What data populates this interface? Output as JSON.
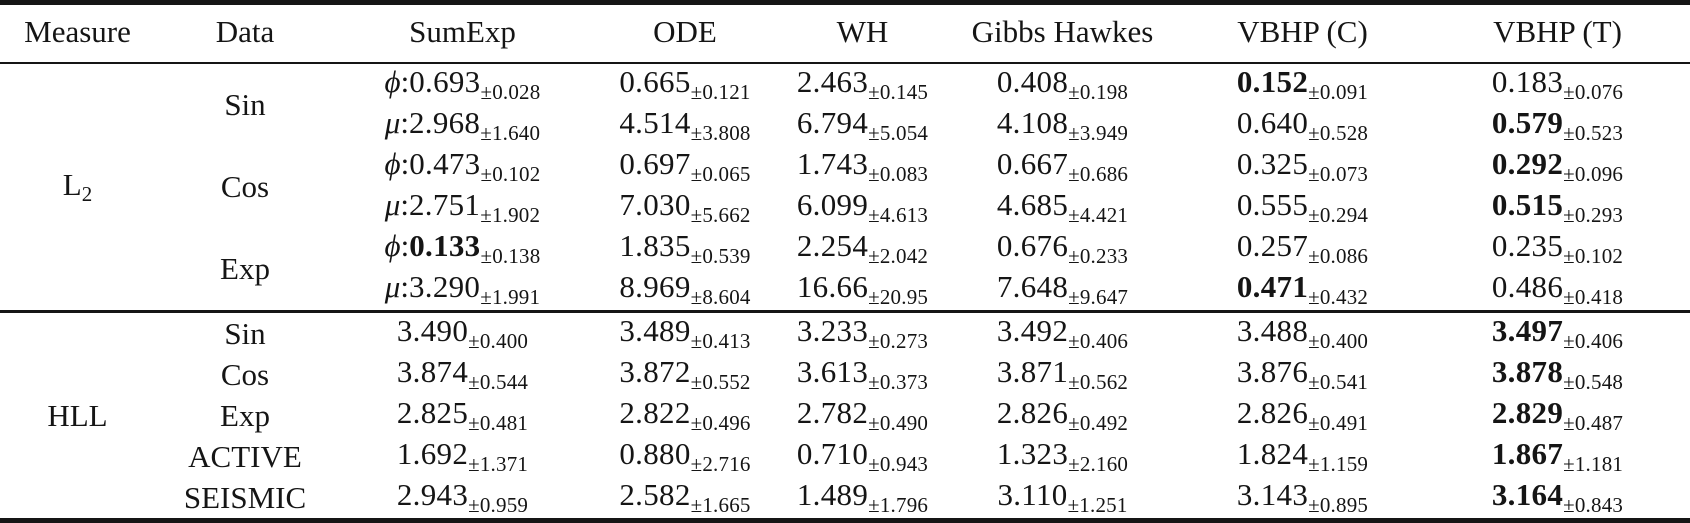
{
  "table": {
    "columns": [
      {
        "key": "measure",
        "label": "Measure"
      },
      {
        "key": "data",
        "label": "Data"
      },
      {
        "key": "sumexp",
        "label": "SumExp"
      },
      {
        "key": "ode",
        "label": "ODE"
      },
      {
        "key": "wh",
        "label": "WH"
      },
      {
        "key": "gibbs_hawkes",
        "label": "Gibbs Hawkes"
      },
      {
        "key": "vbhp_c",
        "label": "VBHP (C)"
      },
      {
        "key": "vbhp_t",
        "label": "VBHP (T)"
      }
    ],
    "sections": [
      {
        "measure": {
          "base": "L",
          "sub": "2"
        },
        "groups": [
          {
            "data": "Sin",
            "rows": [
              {
                "cells": [
                  {
                    "prefix": "ϕ",
                    "value": "0.693",
                    "err": "±0.028",
                    "bold": false
                  },
                  {
                    "value": "0.665",
                    "err": "±0.121",
                    "bold": false
                  },
                  {
                    "value": "2.463",
                    "err": "±0.145",
                    "bold": false
                  },
                  {
                    "value": "0.408",
                    "err": "±0.198",
                    "bold": false
                  },
                  {
                    "value": "0.152",
                    "err": "±0.091",
                    "bold": true
                  },
                  {
                    "value": "0.183",
                    "err": "±0.076",
                    "bold": false
                  }
                ]
              },
              {
                "cells": [
                  {
                    "prefix": "μ",
                    "value": "2.968",
                    "err": "±1.640",
                    "bold": false
                  },
                  {
                    "value": "4.514",
                    "err": "±3.808",
                    "bold": false
                  },
                  {
                    "value": "6.794",
                    "err": "±5.054",
                    "bold": false
                  },
                  {
                    "value": "4.108",
                    "err": "±3.949",
                    "bold": false
                  },
                  {
                    "value": "0.640",
                    "err": "±0.528",
                    "bold": false
                  },
                  {
                    "value": "0.579",
                    "err": "±0.523",
                    "bold": true
                  }
                ]
              }
            ]
          },
          {
            "data": "Cos",
            "rows": [
              {
                "cells": [
                  {
                    "prefix": "ϕ",
                    "value": "0.473",
                    "err": "±0.102",
                    "bold": false
                  },
                  {
                    "value": "0.697",
                    "err": "±0.065",
                    "bold": false
                  },
                  {
                    "value": "1.743",
                    "err": "±0.083",
                    "bold": false
                  },
                  {
                    "value": "0.667",
                    "err": "±0.686",
                    "bold": false
                  },
                  {
                    "value": "0.325",
                    "err": "±0.073",
                    "bold": false
                  },
                  {
                    "value": "0.292",
                    "err": "±0.096",
                    "bold": true
                  }
                ]
              },
              {
                "cells": [
                  {
                    "prefix": "μ",
                    "value": "2.751",
                    "err": "±1.902",
                    "bold": false
                  },
                  {
                    "value": "7.030",
                    "err": "±5.662",
                    "bold": false
                  },
                  {
                    "value": "6.099",
                    "err": "±4.613",
                    "bold": false
                  },
                  {
                    "value": "4.685",
                    "err": "±4.421",
                    "bold": false
                  },
                  {
                    "value": "0.555",
                    "err": "±0.294",
                    "bold": false
                  },
                  {
                    "value": "0.515",
                    "err": "±0.293",
                    "bold": true
                  }
                ]
              }
            ]
          },
          {
            "data": "Exp",
            "rows": [
              {
                "cells": [
                  {
                    "prefix": "ϕ",
                    "value": "0.133",
                    "err": "±0.138",
                    "bold": true
                  },
                  {
                    "value": "1.835",
                    "err": "±0.539",
                    "bold": false
                  },
                  {
                    "value": "2.254",
                    "err": "±2.042",
                    "bold": false
                  },
                  {
                    "value": "0.676",
                    "err": "±0.233",
                    "bold": false
                  },
                  {
                    "value": "0.257",
                    "err": "±0.086",
                    "bold": false
                  },
                  {
                    "value": "0.235",
                    "err": "±0.102",
                    "bold": false
                  }
                ]
              },
              {
                "cells": [
                  {
                    "prefix": "μ",
                    "value": "3.290",
                    "err": "±1.991",
                    "bold": false
                  },
                  {
                    "value": "8.969",
                    "err": "±8.604",
                    "bold": false
                  },
                  {
                    "value": "16.66",
                    "err": "±20.95",
                    "bold": false
                  },
                  {
                    "value": "7.648",
                    "err": "±9.647",
                    "bold": false
                  },
                  {
                    "value": "0.471",
                    "err": "±0.432",
                    "bold": true
                  },
                  {
                    "value": "0.486",
                    "err": "±0.418",
                    "bold": false
                  }
                ]
              }
            ]
          }
        ]
      },
      {
        "measure": {
          "base": "HLL",
          "sub": ""
        },
        "groups": [
          {
            "data": "Sin",
            "rows": [
              {
                "cells": [
                  {
                    "value": "3.490",
                    "err": "±0.400",
                    "bold": false
                  },
                  {
                    "value": "3.489",
                    "err": "±0.413",
                    "bold": false
                  },
                  {
                    "value": "3.233",
                    "err": "±0.273",
                    "bold": false
                  },
                  {
                    "value": "3.492",
                    "err": "±0.406",
                    "bold": false
                  },
                  {
                    "value": "3.488",
                    "err": "±0.400",
                    "bold": false
                  },
                  {
                    "value": "3.497",
                    "err": "±0.406",
                    "bold": true
                  }
                ]
              }
            ]
          },
          {
            "data": "Cos",
            "rows": [
              {
                "cells": [
                  {
                    "value": "3.874",
                    "err": "±0.544",
                    "bold": false
                  },
                  {
                    "value": "3.872",
                    "err": "±0.552",
                    "bold": false
                  },
                  {
                    "value": "3.613",
                    "err": "±0.373",
                    "bold": false
                  },
                  {
                    "value": "3.871",
                    "err": "±0.562",
                    "bold": false
                  },
                  {
                    "value": "3.876",
                    "err": "±0.541",
                    "bold": false
                  },
                  {
                    "value": "3.878",
                    "err": "±0.548",
                    "bold": true
                  }
                ]
              }
            ]
          },
          {
            "data": "Exp",
            "rows": [
              {
                "cells": [
                  {
                    "value": "2.825",
                    "err": "±0.481",
                    "bold": false
                  },
                  {
                    "value": "2.822",
                    "err": "±0.496",
                    "bold": false
                  },
                  {
                    "value": "2.782",
                    "err": "±0.490",
                    "bold": false
                  },
                  {
                    "value": "2.826",
                    "err": "±0.492",
                    "bold": false
                  },
                  {
                    "value": "2.826",
                    "err": "±0.491",
                    "bold": false
                  },
                  {
                    "value": "2.829",
                    "err": "±0.487",
                    "bold": true
                  }
                ]
              }
            ]
          },
          {
            "data": "ACTIVE",
            "rows": [
              {
                "cells": [
                  {
                    "value": "1.692",
                    "err": "±1.371",
                    "bold": false
                  },
                  {
                    "value": "0.880",
                    "err": "±2.716",
                    "bold": false
                  },
                  {
                    "value": "0.710",
                    "err": "±0.943",
                    "bold": false
                  },
                  {
                    "value": "1.323",
                    "err": "±2.160",
                    "bold": false
                  },
                  {
                    "value": "1.824",
                    "err": "±1.159",
                    "bold": false
                  },
                  {
                    "value": "1.867",
                    "err": "±1.181",
                    "bold": true
                  }
                ]
              }
            ]
          },
          {
            "data": "SEISMIC",
            "rows": [
              {
                "cells": [
                  {
                    "value": "2.943",
                    "err": "±0.959",
                    "bold": false
                  },
                  {
                    "value": "2.582",
                    "err": "±1.665",
                    "bold": false
                  },
                  {
                    "value": "1.489",
                    "err": "±1.796",
                    "bold": false
                  },
                  {
                    "value": "3.110",
                    "err": "±1.251",
                    "bold": false
                  },
                  {
                    "value": "3.143",
                    "err": "±0.895",
                    "bold": false
                  },
                  {
                    "value": "3.164",
                    "err": "±0.843",
                    "bold": true
                  }
                ]
              }
            ]
          }
        ]
      }
    ]
  }
}
